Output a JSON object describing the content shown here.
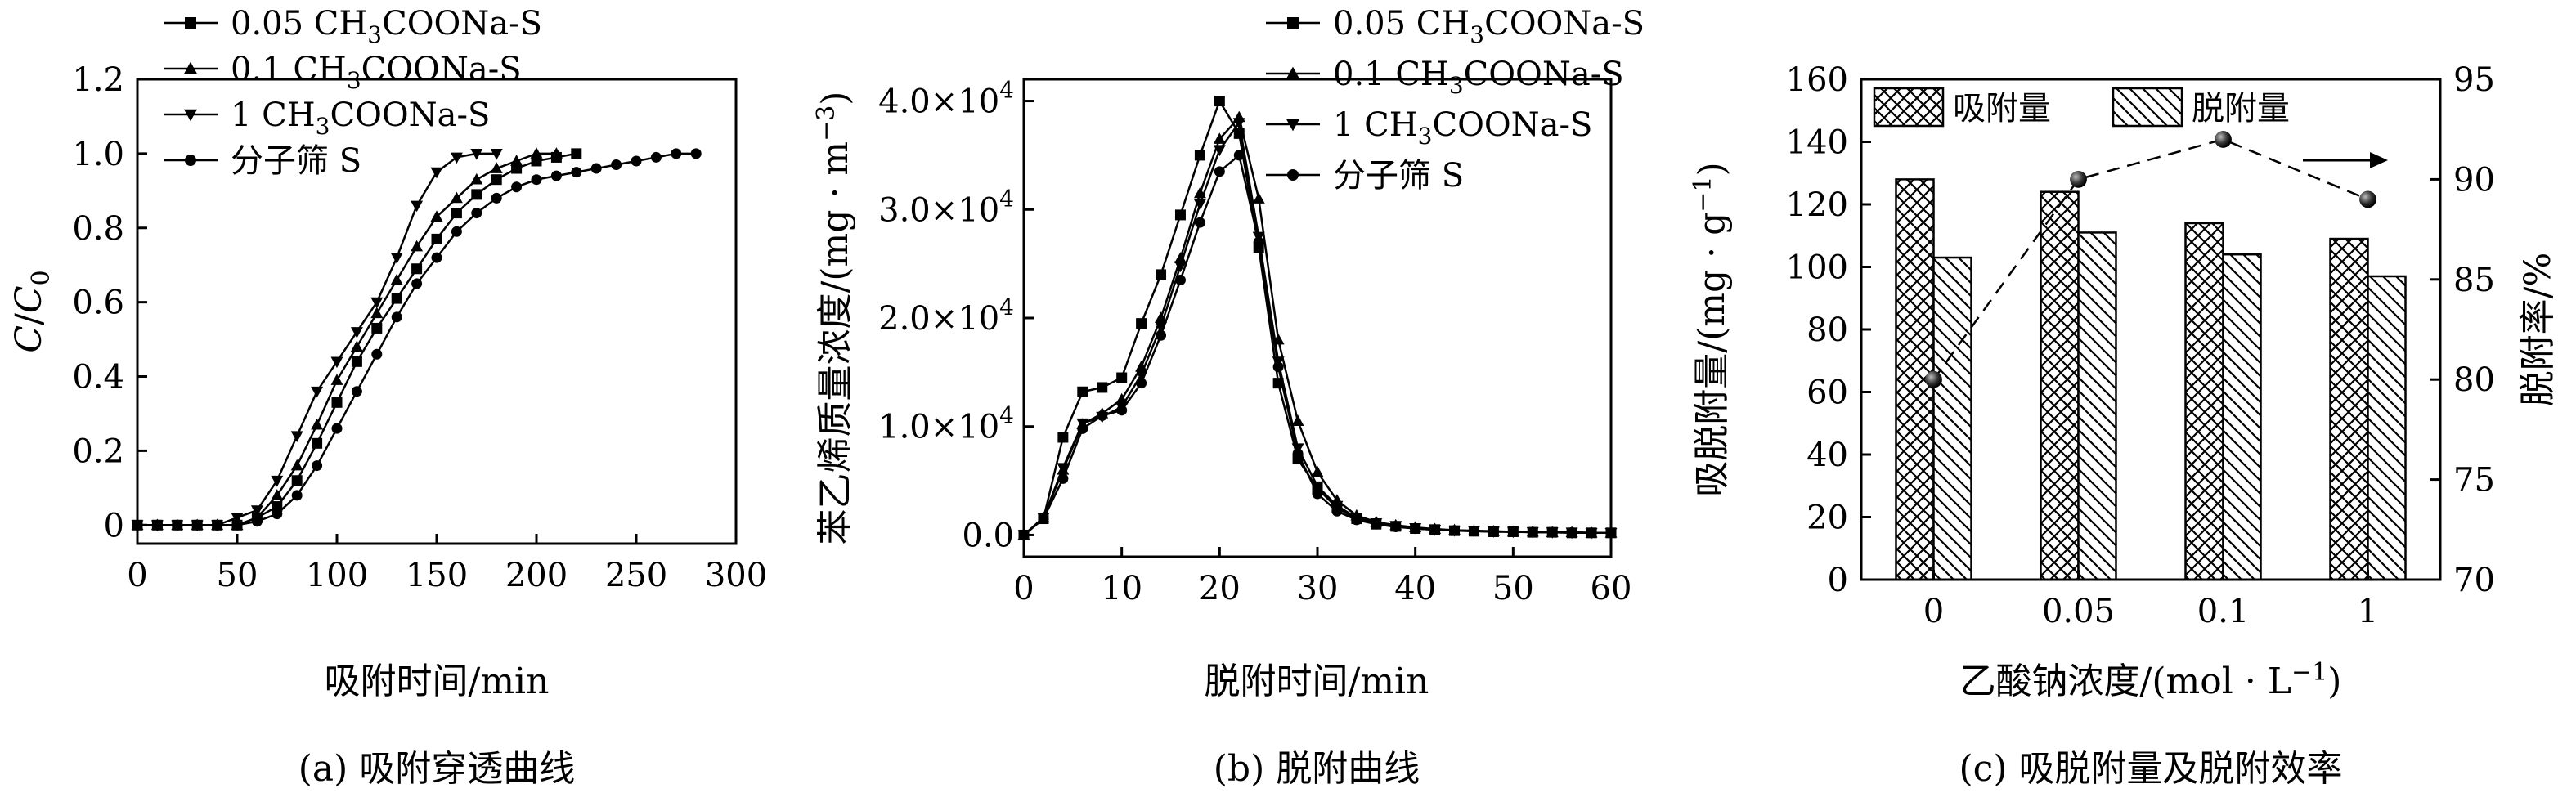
{
  "chart_data": [
    {
      "id": "a",
      "type": "line",
      "caption": "(a) 吸附穿透曲线",
      "xlabel": "吸附时间/min",
      "ylabel_main": "C",
      "ylabel_sub": "0",
      "xlim": [
        0,
        300
      ],
      "ylim": [
        -0.05,
        1.2
      ],
      "xticks": [
        "0",
        "50",
        "100",
        "150",
        "200",
        "250",
        "300"
      ],
      "yticks": [
        "0",
        "0.2",
        "0.4",
        "0.6",
        "0.8",
        "1.0",
        "1.2"
      ],
      "series": [
        {
          "marker": "square",
          "legend": {
            "pre": "0.05 CH",
            "sub": "3",
            "post": "COONa-S"
          },
          "x": [
            0,
            10,
            20,
            30,
            40,
            50,
            60,
            70,
            80,
            90,
            100,
            110,
            120,
            130,
            140,
            150,
            160,
            170,
            180,
            190,
            200,
            210,
            220
          ],
          "y": [
            0,
            0,
            0,
            0,
            0,
            0,
            0.02,
            0.05,
            0.12,
            0.22,
            0.33,
            0.44,
            0.53,
            0.61,
            0.69,
            0.77,
            0.84,
            0.89,
            0.93,
            0.96,
            0.98,
            0.99,
            1.0
          ]
        },
        {
          "marker": "triangle-up",
          "legend": {
            "pre": "0.1 CH",
            "sub": "3",
            "post": "COONa-S"
          },
          "x": [
            0,
            10,
            20,
            30,
            40,
            50,
            60,
            70,
            80,
            90,
            100,
            110,
            120,
            130,
            140,
            150,
            160,
            170,
            180,
            190,
            200,
            210
          ],
          "y": [
            0,
            0,
            0,
            0,
            0,
            0,
            0.02,
            0.08,
            0.16,
            0.27,
            0.39,
            0.48,
            0.57,
            0.66,
            0.75,
            0.83,
            0.88,
            0.93,
            0.96,
            0.98,
            1.0,
            1.0
          ]
        },
        {
          "marker": "triangle-down",
          "legend": {
            "pre": "1 CH",
            "sub": "3",
            "post": "COONa-S"
          },
          "x": [
            0,
            10,
            20,
            30,
            40,
            50,
            60,
            70,
            80,
            90,
            100,
            110,
            120,
            130,
            140,
            150,
            160,
            170,
            180
          ],
          "y": [
            0,
            0,
            0,
            0,
            0,
            0.02,
            0.04,
            0.12,
            0.24,
            0.36,
            0.44,
            0.52,
            0.6,
            0.72,
            0.86,
            0.95,
            0.99,
            1.0,
            1.0
          ]
        },
        {
          "marker": "circle",
          "legend": {
            "pre": "分子筛 S",
            "sub": "",
            "post": ""
          },
          "x": [
            0,
            10,
            20,
            30,
            40,
            50,
            60,
            70,
            80,
            90,
            100,
            110,
            120,
            130,
            140,
            150,
            160,
            170,
            180,
            190,
            200,
            210,
            220,
            230,
            240,
            250,
            260,
            270,
            280
          ],
          "y": [
            0,
            0,
            0,
            0,
            0,
            0,
            0.01,
            0.03,
            0.08,
            0.16,
            0.26,
            0.36,
            0.46,
            0.56,
            0.65,
            0.72,
            0.79,
            0.84,
            0.88,
            0.91,
            0.93,
            0.94,
            0.95,
            0.96,
            0.97,
            0.98,
            0.99,
            1.0,
            1.0
          ]
        }
      ]
    },
    {
      "id": "b",
      "type": "line",
      "caption": "(b) 脱附曲线",
      "xlabel": "脱附时间/min",
      "ylabel_main": "苯乙烯质量浓度/(mg · m",
      "ylabel_sup": "−3",
      "ylabel_tail": ")",
      "xlim": [
        0,
        60
      ],
      "ylim": [
        -2000,
        42000
      ],
      "xticks": [
        "0",
        "10",
        "20",
        "30",
        "40",
        "50",
        "60"
      ],
      "yticks": [
        {
          "mant": "0.0",
          "exp": ""
        },
        {
          "mant": "1.0×10",
          "exp": "4"
        },
        {
          "mant": "2.0×10",
          "exp": "4"
        },
        {
          "mant": "3.0×10",
          "exp": "4"
        },
        {
          "mant": "4.0×10",
          "exp": "4"
        }
      ],
      "series": [
        {
          "marker": "square",
          "legend": {
            "pre": "0.05 CH",
            "sub": "3",
            "post": "COONa-S"
          },
          "x": [
            0,
            2,
            4,
            6,
            8,
            10,
            12,
            14,
            16,
            18,
            20,
            22,
            24,
            26,
            28,
            30,
            32,
            34,
            36,
            38,
            40,
            42,
            44,
            46,
            48,
            50,
            52,
            54,
            56,
            58,
            60
          ],
          "y": [
            0,
            1500,
            9000,
            13200,
            13600,
            14500,
            19500,
            24000,
            29500,
            35000,
            40000,
            37000,
            26500,
            14000,
            7000,
            4300,
            2500,
            1500,
            1000,
            800,
            600,
            500,
            400,
            350,
            300,
            300,
            250,
            250,
            200,
            200,
            200
          ]
        },
        {
          "marker": "triangle-up",
          "legend": {
            "pre": "0.1 CH",
            "sub": "3",
            "post": "COONa-S"
          },
          "x": [
            0,
            2,
            4,
            6,
            8,
            10,
            12,
            14,
            16,
            18,
            20,
            22,
            24,
            26,
            28,
            30,
            32,
            34,
            36,
            38,
            40,
            42,
            44,
            46,
            48,
            50,
            52,
            54,
            56,
            58,
            60
          ],
          "y": [
            0,
            1600,
            6000,
            10200,
            11200,
            12500,
            15500,
            20000,
            25500,
            31500,
            36500,
            38500,
            31000,
            18000,
            10500,
            5800,
            3200,
            1800,
            1200,
            900,
            700,
            550,
            450,
            400,
            350,
            300,
            300,
            250,
            250,
            200,
            200
          ]
        },
        {
          "marker": "triangle-down",
          "legend": {
            "pre": "1 CH",
            "sub": "3",
            "post": "COONa-S"
          },
          "x": [
            0,
            2,
            4,
            6,
            8,
            10,
            12,
            14,
            16,
            18,
            20,
            22,
            24,
            26,
            28,
            30,
            32,
            34,
            36,
            38,
            40,
            42,
            44,
            46,
            48,
            50,
            52,
            54,
            56,
            58,
            60
          ],
          "y": [
            0,
            1600,
            6200,
            10300,
            10900,
            11800,
            14800,
            19200,
            24800,
            30500,
            35500,
            38000,
            27500,
            16000,
            8000,
            4500,
            2700,
            1600,
            1100,
            850,
            650,
            500,
            420,
            380,
            330,
            300,
            280,
            250,
            230,
            200,
            200
          ]
        },
        {
          "marker": "circle",
          "legend": {
            "pre": "分子筛 S",
            "sub": "",
            "post": ""
          },
          "x": [
            0,
            2,
            4,
            6,
            8,
            10,
            12,
            14,
            16,
            18,
            20,
            22,
            24,
            26,
            28,
            30,
            32,
            34,
            36,
            38,
            40,
            42,
            44,
            46,
            48,
            50,
            52,
            54,
            56,
            58,
            60
          ],
          "y": [
            0,
            1500,
            5200,
            9800,
            11000,
            11500,
            14000,
            18400,
            23500,
            28800,
            33500,
            35000,
            27000,
            15500,
            7500,
            3800,
            2200,
            1400,
            1000,
            750,
            600,
            480,
            420,
            360,
            320,
            300,
            270,
            250,
            230,
            200,
            200
          ]
        }
      ]
    },
    {
      "id": "c",
      "type": "bar",
      "caption": "(c) 吸脱附量及脱附效率",
      "xlabel_main": "乙酸钠浓度/(mol · L",
      "xlabel_sup": "−1",
      "xlabel_tail": ")",
      "ylabel_main": "吸脱附量/(mg · g",
      "ylabel_sup": "−1",
      "ylabel_tail": ")",
      "y2label": "脱附率/%",
      "categories": [
        "0",
        "0.05",
        "0.1",
        "1"
      ],
      "ylim": [
        0,
        160
      ],
      "y2lim": [
        70,
        95
      ],
      "yticks": [
        "0",
        "20",
        "40",
        "60",
        "80",
        "100",
        "120",
        "140",
        "160"
      ],
      "y2ticks": [
        "70",
        "75",
        "80",
        "85",
        "90",
        "95"
      ],
      "series": [
        {
          "name": "吸附量",
          "pattern": "crosshatch",
          "values": [
            128,
            124,
            114,
            109
          ]
        },
        {
          "name": "脱附量",
          "pattern": "diagonal",
          "values": [
            103,
            111,
            104,
            97
          ]
        }
      ],
      "line_series": {
        "axis": "right",
        "style": "dashed",
        "marker": "sphere",
        "values": [
          80,
          90,
          92,
          89
        ]
      },
      "arrow_direction": "right"
    }
  ]
}
